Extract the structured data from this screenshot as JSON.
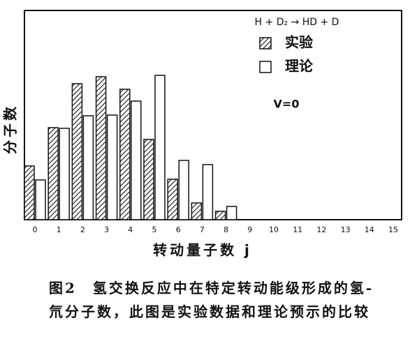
{
  "chart_data": {
    "type": "bar",
    "annotation": "H + D₂ → HD + D",
    "condition": "V=0",
    "y_label": "分子数",
    "x_label": "转动量子数 j",
    "categories": [
      "0",
      "1",
      "2",
      "3",
      "4",
      "5",
      "6",
      "7",
      "8",
      "9",
      "10",
      "11",
      "12",
      "13",
      "14",
      "15"
    ],
    "series": [
      {
        "name": "实验",
        "color": "#111111",
        "pattern": "hatch",
        "values": [
          77,
          132,
          195,
          205,
          187,
          115,
          58,
          24,
          12,
          null,
          null,
          null,
          null,
          null,
          null,
          null
        ]
      },
      {
        "name": "理论",
        "color": "#111111",
        "pattern": "open",
        "values": [
          57,
          131,
          149,
          150,
          170,
          207,
          85,
          79,
          19,
          null,
          null,
          null,
          null,
          null,
          null,
          null
        ]
      }
    ],
    "ylim": [
      0,
      300
    ],
    "caption": "图2　氢交换反应中在特定转动能级形成的氢-氘分子数，此图是实验数据和理论预示的比较"
  }
}
